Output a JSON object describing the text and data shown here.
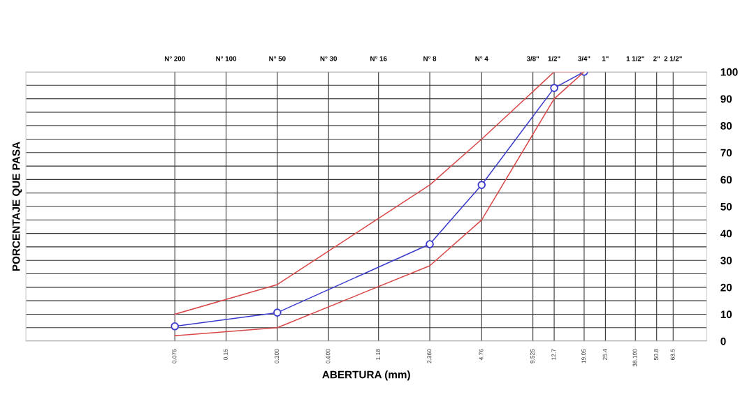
{
  "chart_data": {
    "type": "line",
    "xlabel": "ABERTURA (mm)",
    "ylabel": "PORCENTAJE QUE PASA",
    "log": "x",
    "x": [
      0.075,
      0.3,
      2.36,
      4.76,
      12.7,
      19.05
    ],
    "series": [
      {
        "color": "#3a3acc",
        "marker": "circle",
        "values": [
          5.5,
          10.6,
          36,
          58,
          94,
          100
        ]
      },
      {
        "color": "#d94848",
        "marker": "none",
        "values": [
          10,
          21,
          58,
          75,
          100,
          100
        ]
      },
      {
        "color": "#d94848",
        "marker": "none",
        "values": [
          2,
          5,
          28,
          45,
          90,
          100
        ]
      }
    ],
    "xlim": [
      0.01,
      100
    ],
    "xticks": [
      {
        "value": 0.075,
        "label": "0.075"
      },
      {
        "value": 0.15,
        "label": "0.15"
      },
      {
        "value": 0.3,
        "label": "0.300"
      },
      {
        "value": 0.6,
        "label": "0.600"
      },
      {
        "value": 1.18,
        "label": "1.18"
      },
      {
        "value": 2.36,
        "label": "2.360"
      },
      {
        "value": 4.76,
        "label": "4.76"
      },
      {
        "value": 9.525,
        "label": "9.525"
      },
      {
        "value": 12.7,
        "label": "12.7"
      },
      {
        "value": 19.05,
        "label": "19.05"
      },
      {
        "value": 25.4,
        "label": "25.4"
      },
      {
        "value": 38.1,
        "label": "38.100"
      },
      {
        "value": 50.8,
        "label": "50.8"
      },
      {
        "value": 63.5,
        "label": "63.5"
      }
    ],
    "annotations": [
      "N° 200",
      "N° 100",
      "N° 50",
      "N° 30",
      "N° 16",
      "N° 8",
      "N° 4",
      "3/8\"",
      "1/2\"",
      "3/4\"",
      "1\"",
      "1 1/2\"",
      "2\"",
      "2 1/2\""
    ],
    "ylim": [
      0,
      100
    ],
    "yticks": [
      0,
      {
        "value": 5,
        "label": null
      },
      10,
      {
        "value": 15,
        "label": null
      },
      20,
      {
        "value": 25,
        "label": null
      },
      30,
      {
        "value": 35,
        "label": null
      },
      40,
      {
        "value": 45,
        "label": null
      },
      50,
      {
        "value": 55,
        "label": null
      },
      60,
      {
        "value": 65,
        "label": null
      },
      70,
      {
        "value": 75,
        "label": null
      },
      80,
      {
        "value": 85,
        "label": null
      },
      90,
      {
        "value": 95,
        "label": null
      },
      100
    ],
    "grid": true
  }
}
